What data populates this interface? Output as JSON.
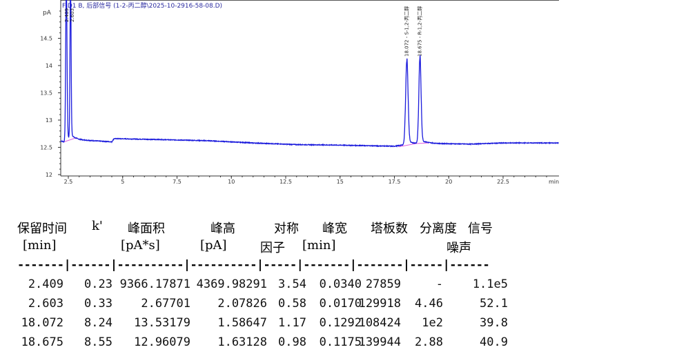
{
  "chart_data": {
    "type": "line",
    "title": "FID1 B, 后部信号 (1-2-丙二醇\\2025-10-2916-58-08.D)",
    "ylabel": "pA",
    "xlabel": "min",
    "xlim": [
      2.15,
      25.07
    ],
    "ylim": [
      12,
      15.1
    ],
    "x_ticks": [
      "2.5",
      "5",
      "7.5",
      "10",
      "12.5",
      "15",
      "17.5",
      "20",
      "22.5"
    ],
    "y_ticks": [
      "12",
      "12.5",
      "13",
      "13.5",
      "14",
      "14.5"
    ],
    "grid": false,
    "colors": {
      "signal": "#1a1adc",
      "baseline": "#e060e0",
      "axis": "#333333",
      "title": "#2a2aa0"
    },
    "baseline_points": [
      [
        2.15,
        12.62
      ],
      [
        2.3,
        12.6
      ],
      [
        2.9,
        12.64
      ],
      [
        4.5,
        12.6
      ],
      [
        4.6,
        12.66
      ],
      [
        7,
        12.64
      ],
      [
        9,
        12.62
      ],
      [
        11,
        12.58
      ],
      [
        13,
        12.55
      ],
      [
        15,
        12.54
      ],
      [
        17.5,
        12.52
      ],
      [
        18,
        12.55
      ],
      [
        19,
        12.57
      ],
      [
        21,
        12.56
      ],
      [
        22.5,
        12.58
      ],
      [
        25.07,
        12.58
      ]
    ],
    "peaks": [
      {
        "rt": 2.409,
        "height": 15.5,
        "width": 0.03,
        "label": "2.409"
      },
      {
        "rt": 2.603,
        "height": 15.5,
        "width": 0.025,
        "label": "2.603"
      },
      {
        "rt": 18.072,
        "height": 14.08,
        "width": 0.055,
        "label": "18.072 - S-1,2-丙二醇"
      },
      {
        "rt": 18.675,
        "height": 14.13,
        "width": 0.05,
        "label": "18.675 - R-1,2-丙二醇"
      }
    ]
  },
  "table": {
    "headers1": [
      "保留时间",
      "k'",
      "峰面积",
      "峰高",
      "对称",
      "峰宽",
      "塔板数",
      "分离度",
      "信号"
    ],
    "headers2": [
      "[min]",
      "[pA*s]",
      "[pA]",
      "因子",
      "[min]",
      "噪声"
    ],
    "separator": "-------|------|----------|----------|-----|-------|-------|-----|------",
    "rows": [
      [
        "2.409",
        "0.23",
        "9366.17871",
        "4369.98291",
        "3.54",
        "0.0340",
        "27859",
        "-",
        "1.1e5"
      ],
      [
        "2.603",
        "0.33",
        "2.67701",
        "2.07826",
        "0.58",
        "0.0170",
        "129918",
        "4.46",
        "52.1"
      ],
      [
        "18.072",
        "8.24",
        "13.53179",
        "1.58647",
        "1.17",
        "0.1292",
        "108424",
        "1e2",
        "39.8"
      ],
      [
        "18.675",
        "8.55",
        "12.96079",
        "1.63128",
        "0.98",
        "0.1175",
        "139944",
        "2.88",
        "40.9"
      ]
    ]
  }
}
